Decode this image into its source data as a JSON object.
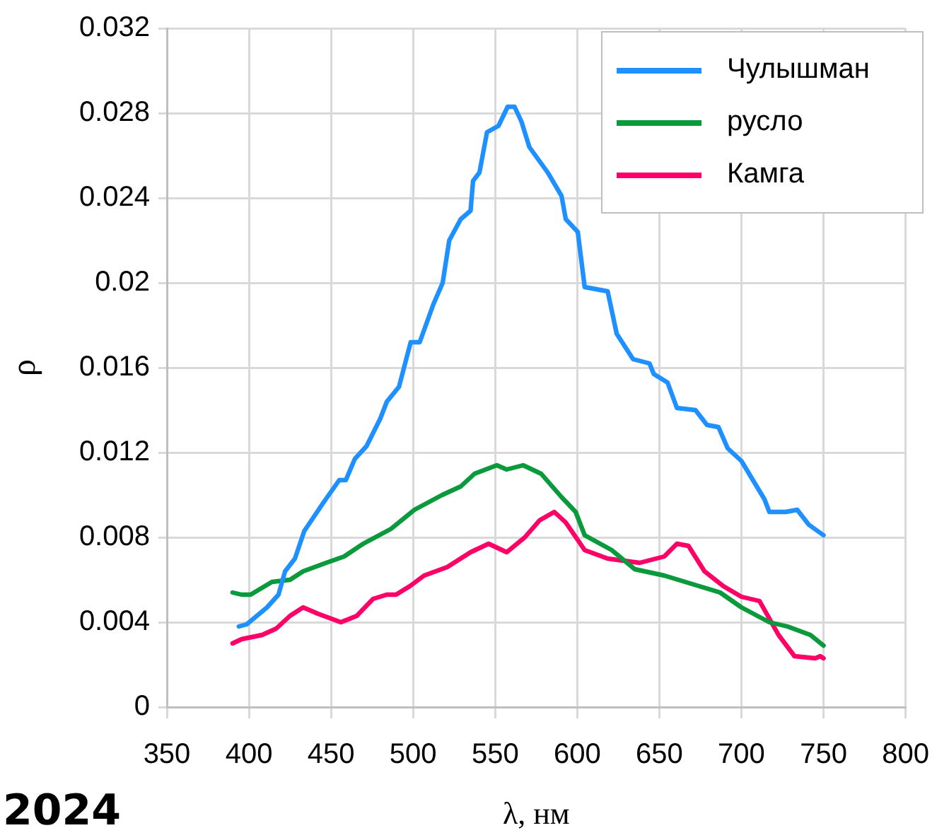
{
  "chart_data": {
    "type": "line",
    "xlabel": "λ, нм",
    "ylabel": "ρ",
    "xlim": [
      350,
      800
    ],
    "xticks": [
      350,
      400,
      450,
      500,
      550,
      600,
      650,
      700,
      750,
      800
    ],
    "ylim": [
      0,
      0.032
    ],
    "yticks": [
      0,
      0.004,
      0.008,
      0.012,
      0.016,
      0.02,
      0.024,
      0.028,
      0.032
    ],
    "grid": true,
    "legend": "top right",
    "marker": "none",
    "line_style": "solid",
    "annotations": [
      "2024"
    ],
    "series": [
      {
        "name": "Чулышман",
        "color": "#1e90ff",
        "x": [
          393.8,
          398.6,
          411,
          418,
          422,
          428,
          433.7,
          445,
          455,
          459,
          464.5,
          471.6,
          480,
          484,
          491.4,
          498.5,
          504,
          512.4,
          518,
          522,
          529,
          535,
          536.5,
          540.4,
          545,
          552,
          557.6,
          561.8,
          566,
          570.8,
          582,
          590.4,
          593,
          600.3,
          604.5,
          618.5,
          624,
          634,
          644,
          646.6,
          655,
          660.7,
          672,
          679,
          686,
          691.6,
          700,
          714,
          717,
          727,
          734,
          741,
          750
        ],
        "values": [
          0.0038,
          0.0039,
          0.0047,
          0.0053,
          0.0064,
          0.007,
          0.0083,
          0.0096,
          0.0107,
          0.0107,
          0.0117,
          0.0123,
          0.0136,
          0.0144,
          0.0151,
          0.0172,
          0.0172,
          0.019,
          0.02,
          0.022,
          0.023,
          0.0234,
          0.0248,
          0.0252,
          0.0271,
          0.0274,
          0.0283,
          0.0283,
          0.0276,
          0.0264,
          0.0252,
          0.0241,
          0.023,
          0.0224,
          0.0198,
          0.0196,
          0.0176,
          0.0164,
          0.0162,
          0.0157,
          0.0153,
          0.0141,
          0.014,
          0.0133,
          0.0132,
          0.0122,
          0.0116,
          0.0098,
          0.0092,
          0.0092,
          0.0093,
          0.0086,
          0.0081
        ]
      },
      {
        "name": "русло",
        "color": "#0a9a3c",
        "x": [
          390,
          395.5,
          401,
          414,
          425,
          433,
          447,
          458,
          469.6,
          486.5,
          500.8,
          517.7,
          529,
          537.4,
          551,
          557,
          567,
          578,
          590.4,
          599,
          604.5,
          621,
          635,
          653,
          670,
          687,
          700,
          717,
          728,
          742,
          750
        ],
        "values": [
          0.0054,
          0.0053,
          0.0053,
          0.0059,
          0.006,
          0.0064,
          0.0068,
          0.0071,
          0.0077,
          0.0084,
          0.0093,
          0.01,
          0.0104,
          0.011,
          0.0114,
          0.0112,
          0.0114,
          0.011,
          0.0099,
          0.0092,
          0.0081,
          0.0074,
          0.0065,
          0.0062,
          0.0058,
          0.0054,
          0.0047,
          0.004,
          0.0038,
          0.0034,
          0.0029
        ]
      },
      {
        "name": "Камга",
        "color": "#ff0066",
        "x": [
          390,
          395.5,
          408,
          416.6,
          425,
          433,
          442,
          456,
          465.7,
          475.6,
          484,
          489.6,
          498,
          506.7,
          520.8,
          535,
          546,
          557,
          568,
          577,
          586,
          593,
          604.5,
          618.5,
          638,
          653,
          660.7,
          667.7,
          677.5,
          689,
          700,
          711,
          722.6,
          732.3,
          745,
          748,
          750
        ],
        "values": [
          0.003,
          0.0032,
          0.0034,
          0.0037,
          0.0043,
          0.0047,
          0.0044,
          0.004,
          0.0043,
          0.0051,
          0.0053,
          0.0053,
          0.0057,
          0.0062,
          0.0066,
          0.0073,
          0.0077,
          0.0073,
          0.008,
          0.0088,
          0.0092,
          0.0087,
          0.0074,
          0.007,
          0.0068,
          0.0071,
          0.0077,
          0.0076,
          0.0064,
          0.0057,
          0.0052,
          0.005,
          0.0034,
          0.0024,
          0.0023,
          0.0024,
          0.0023
        ]
      }
    ]
  }
}
